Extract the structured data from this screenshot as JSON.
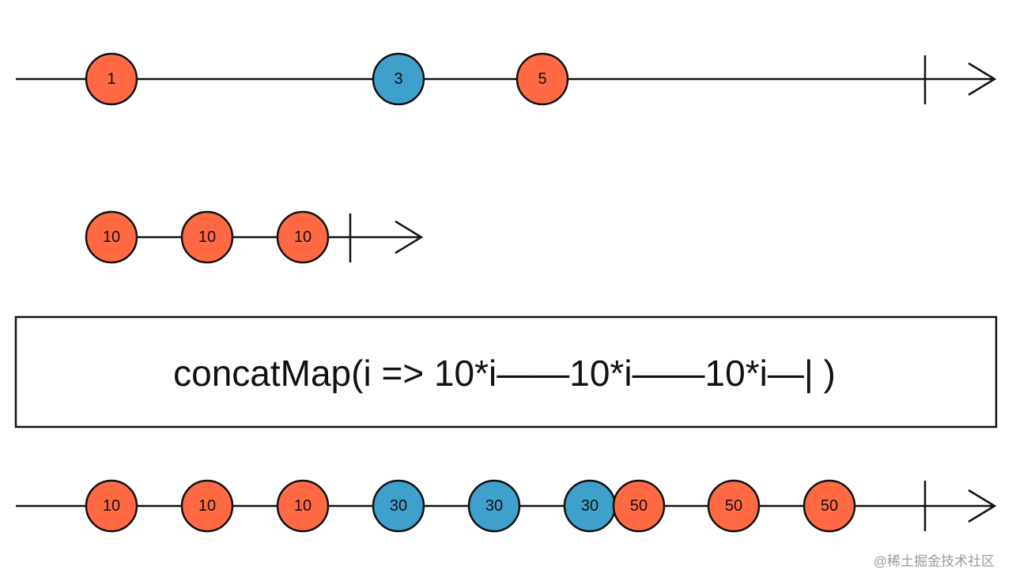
{
  "source": {
    "marbles": [
      {
        "label": "1",
        "color": "#ff6a45"
      },
      {
        "label": "3",
        "color": "#3fa0cc"
      },
      {
        "label": "5",
        "color": "#ff6a45"
      }
    ]
  },
  "inner": {
    "marbles": [
      {
        "label": "10",
        "color": "#ff6a45"
      },
      {
        "label": "10",
        "color": "#ff6a45"
      },
      {
        "label": "10",
        "color": "#ff6a45"
      }
    ]
  },
  "operator": {
    "text": "concatMap(i => 10*i——10*i——10*i—| )"
  },
  "output": {
    "marbles": [
      {
        "label": "10",
        "color": "#ff6a45"
      },
      {
        "label": "10",
        "color": "#ff6a45"
      },
      {
        "label": "10",
        "color": "#ff6a45"
      },
      {
        "label": "30",
        "color": "#3fa0cc"
      },
      {
        "label": "30",
        "color": "#3fa0cc"
      },
      {
        "label": "30",
        "color": "#3fa0cc"
      },
      {
        "label": "50",
        "color": "#ff6a45"
      },
      {
        "label": "50",
        "color": "#ff6a45"
      },
      {
        "label": "50",
        "color": "#ff6a45"
      }
    ]
  },
  "watermark": "@稀土掘金技术社区"
}
